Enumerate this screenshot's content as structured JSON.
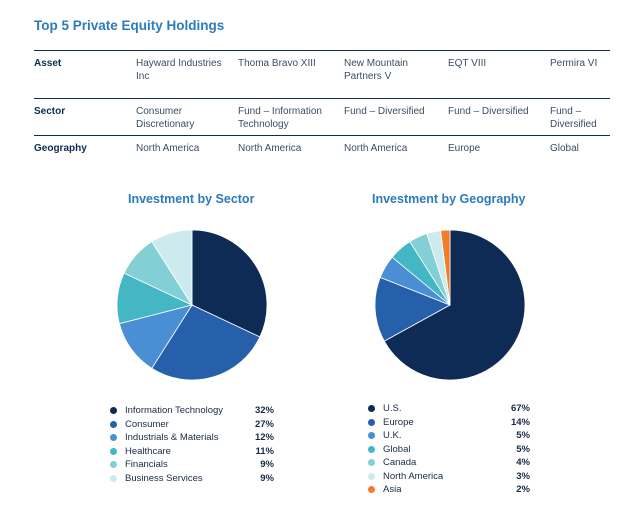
{
  "title": "Top 5 Private Equity Holdings",
  "table": {
    "rows": [
      {
        "head": "Asset",
        "cells": [
          "Hayward Industries Inc",
          "Thoma Bravo XIII",
          "New Mountain Partners V",
          "EQT VIII",
          "Permira VI"
        ]
      },
      {
        "head": "Sector",
        "cells": [
          "Consumer Discretionary",
          "Fund – Information Technology",
          "Fund – Diversified",
          "Fund – Diversified",
          "Fund – Diversified"
        ]
      },
      {
        "head": "Geography",
        "cells": [
          "North America",
          "North America",
          "North America",
          "Europe",
          "Global"
        ]
      }
    ]
  },
  "chart_data": [
    {
      "type": "pie",
      "title": "Investment by Sector",
      "categories": [
        "Information Technology",
        "Consumer",
        "Industrials & Materials",
        "Healthcare",
        "Financials",
        "Business Services"
      ],
      "values": [
        32,
        27,
        12,
        11,
        9,
        9
      ],
      "labels": [
        "32%",
        "27%",
        "12%",
        "11%",
        "9%",
        "9%"
      ],
      "colors": [
        "#0d2b55",
        "#2660ab",
        "#4a8fd4",
        "#45b6c4",
        "#82d0d6",
        "#cdebee"
      ]
    },
    {
      "type": "pie",
      "title": "Investment by Geography",
      "categories": [
        "U.S.",
        "Europe",
        "U.K.",
        "Global",
        "Canada",
        "North America",
        "Asia"
      ],
      "values": [
        67,
        14,
        5,
        5,
        4,
        3,
        2
      ],
      "labels": [
        "67%",
        "14%",
        "5%",
        "5%",
        "4%",
        "3%",
        "2%"
      ],
      "colors": [
        "#0d2b55",
        "#2660ab",
        "#4a8fd4",
        "#45b6c4",
        "#82d0d6",
        "#cdebee",
        "#f07d2a"
      ]
    }
  ]
}
